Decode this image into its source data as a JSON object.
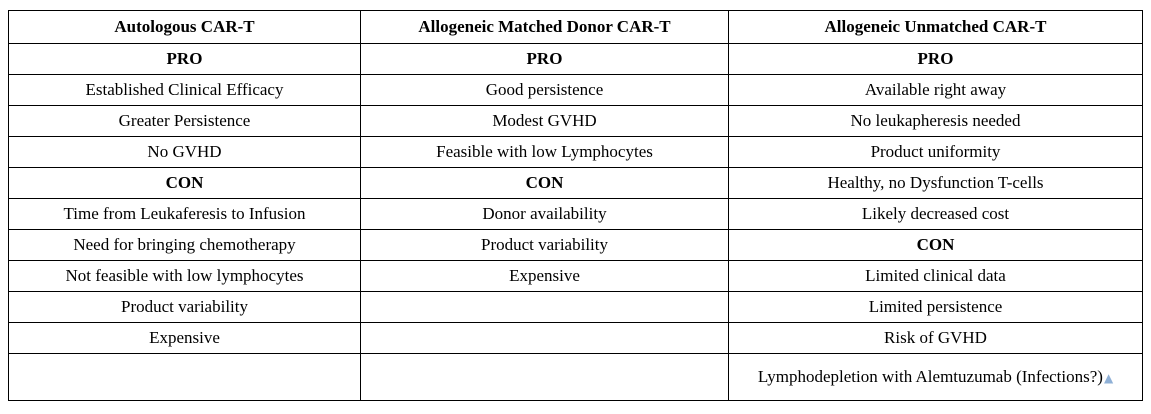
{
  "columns": [
    "Autologous CAR-T",
    "Allogeneic Matched Donor CAR-T",
    "Allogeneic  Unmatched CAR-T"
  ],
  "rows": [
    [
      {
        "text": "PRO",
        "bold": true
      },
      {
        "text": "PRO",
        "bold": true
      },
      {
        "text": "PRO",
        "bold": true
      }
    ],
    [
      {
        "text": "Established Clinical Efficacy"
      },
      {
        "text": "Good persistence"
      },
      {
        "text": "Available right away"
      }
    ],
    [
      {
        "text": "Greater Persistence"
      },
      {
        "text": "Modest GVHD"
      },
      {
        "text": "No leukapheresis needed"
      }
    ],
    [
      {
        "text": "No GVHD"
      },
      {
        "text": "Feasible with low Lymphocytes"
      },
      {
        "text": "Product uniformity"
      }
    ],
    [
      {
        "text": "CON",
        "bold": true
      },
      {
        "text": "CON",
        "bold": true
      },
      {
        "text": "Healthy, no Dysfunction T-cells"
      }
    ],
    [
      {
        "text": "Time from Leukaferesis to Infusion"
      },
      {
        "text": "Donor availability"
      },
      {
        "text": "Likely decreased cost"
      }
    ],
    [
      {
        "text": "Need for bringing chemotherapy"
      },
      {
        "text": "Product variability"
      },
      {
        "text": "CON",
        "bold": true
      }
    ],
    [
      {
        "text": "Not feasible with low lymphocytes"
      },
      {
        "text": "Expensive"
      },
      {
        "text": "Limited clinical data"
      }
    ],
    [
      {
        "text": "Product variability"
      },
      {
        "text": ""
      },
      {
        "text": "Limited persistence"
      }
    ],
    [
      {
        "text": "Expensive"
      },
      {
        "text": ""
      },
      {
        "text": "Risk of GVHD"
      }
    ],
    [
      {
        "text": ""
      },
      {
        "text": ""
      },
      {
        "text": "Lymphodepletion with Alemtuzumab (Infections?)"
      }
    ]
  ],
  "icons": {
    "resize_handle": "up-arrow-icon",
    "resize_color": "#8fb0d6"
  }
}
